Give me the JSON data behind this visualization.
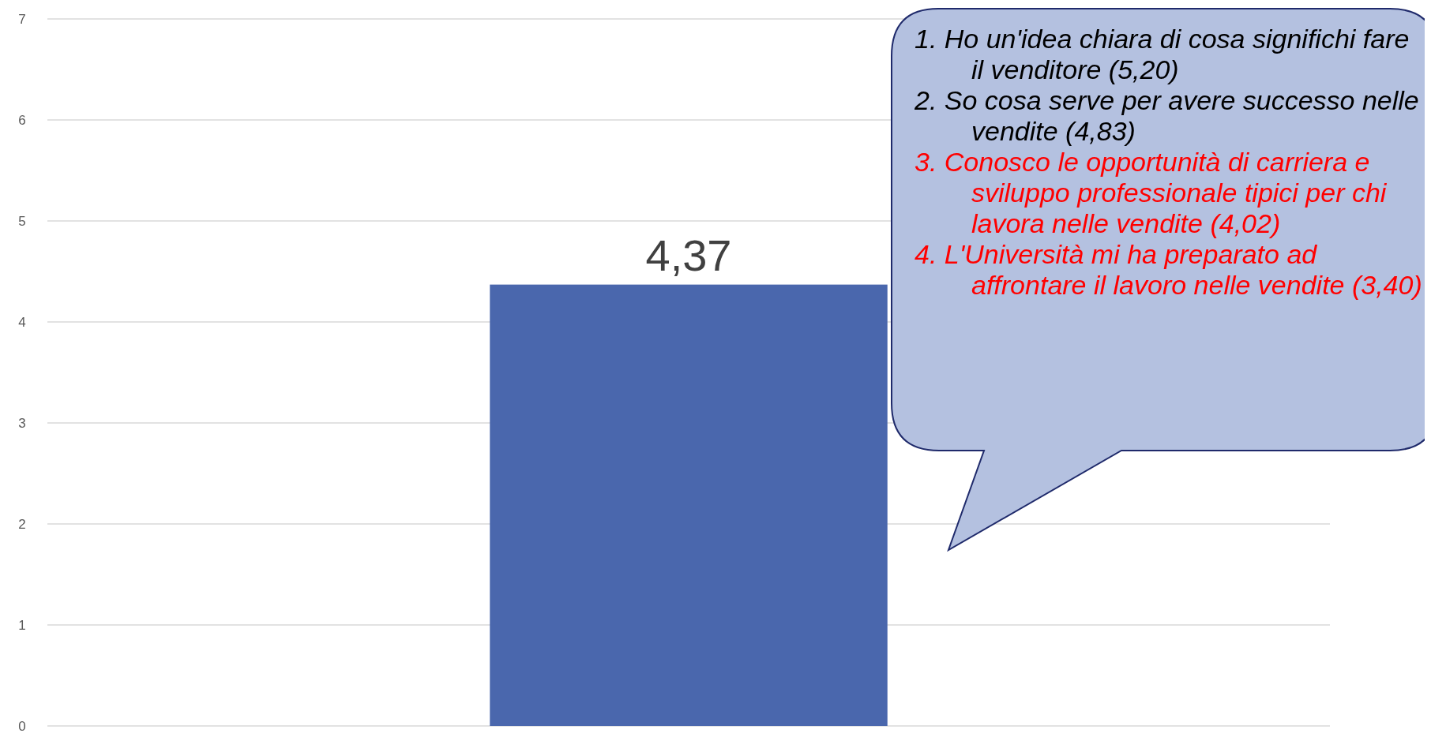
{
  "chart_data": {
    "type": "bar",
    "categories": [
      null
    ],
    "values": [
      4.37
    ],
    "color": "#4a67ad",
    "value_labels": [
      "4,37"
    ],
    "ylim": [
      0,
      7
    ],
    "yticks": [
      0,
      1,
      2,
      3,
      4,
      5,
      6,
      7
    ],
    "grid": "y",
    "tick_labels": "y",
    "annotations": [
      "1. Ho un'idea chiara di cosa significhi fare il venditore (5,20)",
      "2. So cosa serve per avere successo nelle vendite (4,83)",
      "3. Conosco le opportunità di carriera e sviluppo professionale tipici per chi lavora nelle vendite (4,02)",
      "4. L'Università mi ha preparato ad affrontare il lavoro nelle vendite (3,40)"
    ]
  }
}
